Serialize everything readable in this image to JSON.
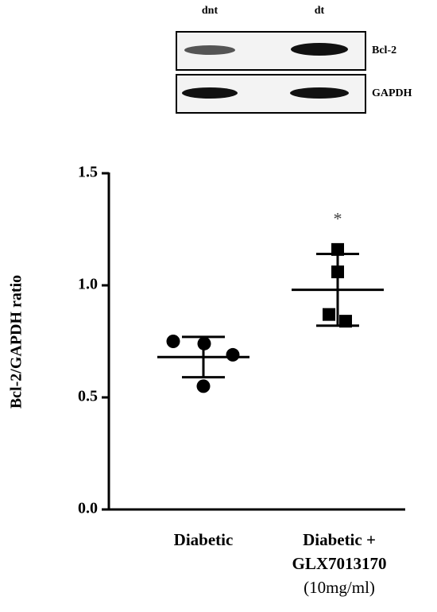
{
  "blot": {
    "lanes": [
      "dnt",
      "dt"
    ],
    "rows": [
      "Bcl-2",
      "GAPDH"
    ]
  },
  "chart_data": {
    "type": "dotplot",
    "ylabel": "Bcl-2/GAPDH ratio",
    "categories": [
      [
        "Diabetic"
      ],
      [
        "Diabetic +",
        "GLX7013170",
        "(10mg/ml)"
      ]
    ],
    "groups": [
      {
        "marker": "circle",
        "values": [
          0.75,
          0.74,
          0.69,
          0.55
        ],
        "mean": 0.68,
        "sd": 0.09
      },
      {
        "marker": "square",
        "values": [
          1.16,
          1.06,
          0.87,
          0.84
        ],
        "mean": 0.98,
        "sd": 0.16,
        "annotation": "*"
      }
    ],
    "color": "#000000",
    "ylim": [
      0,
      1.5
    ],
    "yticks": [
      {
        "value": 0,
        "label": "0.0"
      },
      {
        "value": 0.5,
        "label": "0.5"
      },
      {
        "value": 1.0,
        "label": "1.0"
      },
      {
        "value": 1.5,
        "label": "1.5"
      }
    ]
  }
}
